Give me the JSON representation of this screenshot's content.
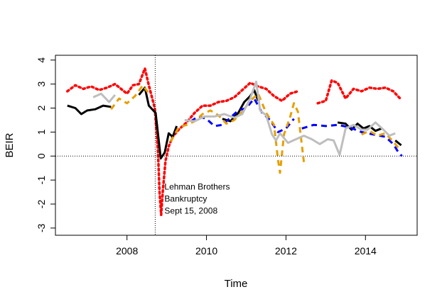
{
  "chart_data": {
    "type": "line",
    "xlabel": "Time",
    "ylabel": "BEIR",
    "xlim": [
      2006.2,
      2015.3
    ],
    "ylim": [
      -3.3,
      4.2
    ],
    "x_ticks": [
      2008,
      2010,
      2012,
      2014
    ],
    "y_ticks": [
      -3,
      -2,
      -1,
      0,
      1,
      2,
      3,
      4
    ],
    "annotation": {
      "lines": [
        "Lehman Brothers",
        "Bankruptcy",
        "Sept 15, 2008"
      ],
      "anchor": [
        2009.3,
        -1.4
      ]
    },
    "event_line": {
      "x": 2008.71
    },
    "zero_line": {
      "y": 0
    },
    "grid": false,
    "legend": "none",
    "series": [
      {
        "color": "#ff0000",
        "style": "dotted",
        "segments": [
          [
            [
              2006.5,
              2.7
            ],
            [
              2006.7,
              2.95
            ],
            [
              2006.9,
              2.8
            ],
            [
              2007.1,
              2.9
            ],
            [
              2007.3,
              2.75
            ],
            [
              2007.5,
              2.85
            ],
            [
              2007.7,
              3.0
            ],
            [
              2007.85,
              2.8
            ],
            [
              2008.0,
              2.6
            ],
            [
              2008.15,
              2.95
            ],
            [
              2008.3,
              3.0
            ],
            [
              2008.45,
              3.65
            ],
            [
              2008.55,
              2.95
            ],
            [
              2008.7,
              2.0
            ],
            [
              2008.78,
              0.2
            ],
            [
              2008.82,
              -1.5
            ],
            [
              2008.86,
              -2.45
            ],
            [
              2008.9,
              -1.5
            ],
            [
              2008.97,
              -0.2
            ],
            [
              2009.05,
              0.4
            ],
            [
              2009.15,
              0.8
            ],
            [
              2009.3,
              1.1
            ],
            [
              2009.5,
              1.4
            ],
            [
              2009.7,
              1.8
            ],
            [
              2009.9,
              2.1
            ],
            [
              2010.1,
              2.1
            ],
            [
              2010.3,
              2.25
            ],
            [
              2010.5,
              2.3
            ],
            [
              2010.7,
              2.45
            ],
            [
              2010.9,
              2.75
            ],
            [
              2011.1,
              3.05
            ],
            [
              2011.3,
              2.9
            ],
            [
              2011.5,
              2.8
            ],
            [
              2011.7,
              2.5
            ],
            [
              2011.9,
              2.3
            ],
            [
              2012.1,
              2.6
            ],
            [
              2012.3,
              2.7
            ]
          ],
          [
            [
              2012.8,
              2.2
            ],
            [
              2013.0,
              2.3
            ],
            [
              2013.15,
              3.15
            ],
            [
              2013.3,
              3.05
            ],
            [
              2013.5,
              2.4
            ],
            [
              2013.7,
              2.8
            ],
            [
              2013.9,
              2.7
            ],
            [
              2014.1,
              2.85
            ],
            [
              2014.3,
              2.8
            ],
            [
              2014.5,
              2.85
            ],
            [
              2014.7,
              2.7
            ],
            [
              2014.9,
              2.35
            ]
          ]
        ]
      },
      {
        "color": "#000000",
        "style": "solid",
        "segments": [
          [
            [
              2006.5,
              2.1
            ],
            [
              2006.7,
              2.0
            ],
            [
              2006.85,
              1.75
            ],
            [
              2007.0,
              1.9
            ],
            [
              2007.2,
              1.95
            ],
            [
              2007.4,
              2.1
            ],
            [
              2007.6,
              2.05
            ]
          ],
          [
            [
              2008.3,
              2.55
            ],
            [
              2008.45,
              2.85
            ],
            [
              2008.55,
              2.1
            ],
            [
              2008.72,
              1.8
            ],
            [
              2008.85,
              -0.1
            ],
            [
              2008.95,
              0.15
            ],
            [
              2009.05,
              0.95
            ],
            [
              2009.15,
              0.8
            ],
            [
              2009.25,
              1.25
            ]
          ],
          [
            [
              2010.4,
              1.55
            ],
            [
              2010.6,
              1.45
            ],
            [
              2010.8,
              1.8
            ],
            [
              2010.95,
              2.25
            ],
            [
              2011.1,
              2.5
            ],
            [
              2011.2,
              2.75
            ],
            [
              2011.3,
              2.3
            ]
          ],
          [
            [
              2013.3,
              1.4
            ],
            [
              2013.5,
              1.35
            ],
            [
              2013.65,
              1.1
            ],
            [
              2013.8,
              1.35
            ],
            [
              2013.95,
              1.15
            ],
            [
              2014.1,
              1.25
            ],
            [
              2014.25,
              1.05
            ],
            [
              2014.4,
              1.15
            ]
          ],
          [
            [
              2014.75,
              0.65
            ],
            [
              2014.9,
              0.45
            ]
          ]
        ]
      },
      {
        "color": "#0000ff",
        "style": "dashed",
        "segments": [
          [
            [
              2009.6,
              1.45
            ],
            [
              2009.8,
              1.65
            ],
            [
              2010.0,
              1.55
            ],
            [
              2010.2,
              1.25
            ],
            [
              2010.4,
              1.3
            ],
            [
              2010.6,
              1.6
            ],
            [
              2010.8,
              1.9
            ],
            [
              2011.0,
              2.0
            ],
            [
              2011.2,
              2.4
            ],
            [
              2011.4,
              1.8
            ],
            [
              2011.6,
              1.5
            ],
            [
              2011.8,
              1.0
            ],
            [
              2012.0,
              1.15
            ],
            [
              2012.2,
              1.55
            ]
          ],
          [
            [
              2012.4,
              1.15
            ],
            [
              2012.7,
              1.3
            ],
            [
              2013.0,
              1.25
            ],
            [
              2013.3,
              1.3
            ],
            [
              2013.6,
              1.2
            ],
            [
              2013.9,
              1.0
            ],
            [
              2014.2,
              0.9
            ],
            [
              2014.5,
              0.8
            ],
            [
              2014.7,
              0.5
            ],
            [
              2014.85,
              0.1
            ],
            [
              2014.92,
              0.0
            ]
          ]
        ]
      },
      {
        "color": "#e69f00",
        "style": "dashed",
        "segments": [
          [
            [
              2007.6,
              1.95
            ],
            [
              2007.8,
              2.4
            ],
            [
              2008.0,
              2.2
            ],
            [
              2008.2,
              2.5
            ],
            [
              2008.4,
              2.95
            ],
            [
              2008.55,
              2.6
            ]
          ],
          [
            [
              2009.1,
              0.6
            ],
            [
              2009.3,
              1.2
            ],
            [
              2009.5,
              1.3
            ],
            [
              2009.7,
              1.45
            ],
            [
              2009.9,
              1.75
            ],
            [
              2010.1,
              1.9
            ],
            [
              2010.3,
              1.7
            ],
            [
              2010.5,
              1.35
            ],
            [
              2010.7,
              1.5
            ],
            [
              2010.9,
              1.85
            ],
            [
              2011.1,
              2.3
            ],
            [
              2011.3,
              2.6
            ],
            [
              2011.5,
              1.8
            ],
            [
              2011.7,
              1.3
            ],
            [
              2011.8,
              -0.15
            ],
            [
              2011.85,
              -0.7
            ],
            [
              2011.95,
              0.9
            ],
            [
              2012.1,
              1.6
            ],
            [
              2012.2,
              2.2
            ],
            [
              2012.3,
              1.85
            ],
            [
              2012.45,
              -0.25
            ]
          ],
          [
            [
              2013.9,
              0.9
            ],
            [
              2014.1,
              1.05
            ],
            [
              2014.3,
              0.85
            ],
            [
              2014.5,
              0.95
            ],
            [
              2014.7,
              0.6
            ],
            [
              2014.85,
              0.3
            ]
          ]
        ]
      },
      {
        "color": "#bebebe",
        "style": "solid",
        "segments": [
          [
            [
              2007.15,
              2.45
            ],
            [
              2007.35,
              2.6
            ],
            [
              2007.55,
              2.25
            ],
            [
              2007.7,
              2.55
            ]
          ],
          [
            [
              2009.45,
              1.5
            ],
            [
              2009.7,
              1.45
            ],
            [
              2009.95,
              1.65
            ],
            [
              2010.2,
              1.65
            ],
            [
              2010.45,
              1.75
            ],
            [
              2010.7,
              1.6
            ],
            [
              2010.9,
              1.75
            ],
            [
              2011.1,
              2.4
            ],
            [
              2011.25,
              3.1
            ],
            [
              2011.35,
              1.9
            ],
            [
              2011.5,
              1.7
            ],
            [
              2011.65,
              0.9
            ],
            [
              2011.75,
              0.65
            ],
            [
              2011.85,
              0.95
            ],
            [
              2012.05,
              0.55
            ],
            [
              2012.25,
              0.7
            ],
            [
              2012.45,
              0.85
            ],
            [
              2012.65,
              0.7
            ],
            [
              2012.85,
              0.5
            ],
            [
              2013.05,
              0.7
            ],
            [
              2013.2,
              0.65
            ],
            [
              2013.35,
              0.05
            ],
            [
              2013.5,
              1.15
            ],
            [
              2013.7,
              1.3
            ],
            [
              2013.9,
              1.1
            ],
            [
              2014.05,
              1.1
            ],
            [
              2014.25,
              1.4
            ],
            [
              2014.45,
              1.1
            ],
            [
              2014.6,
              0.85
            ],
            [
              2014.75,
              0.95
            ]
          ]
        ]
      }
    ]
  }
}
